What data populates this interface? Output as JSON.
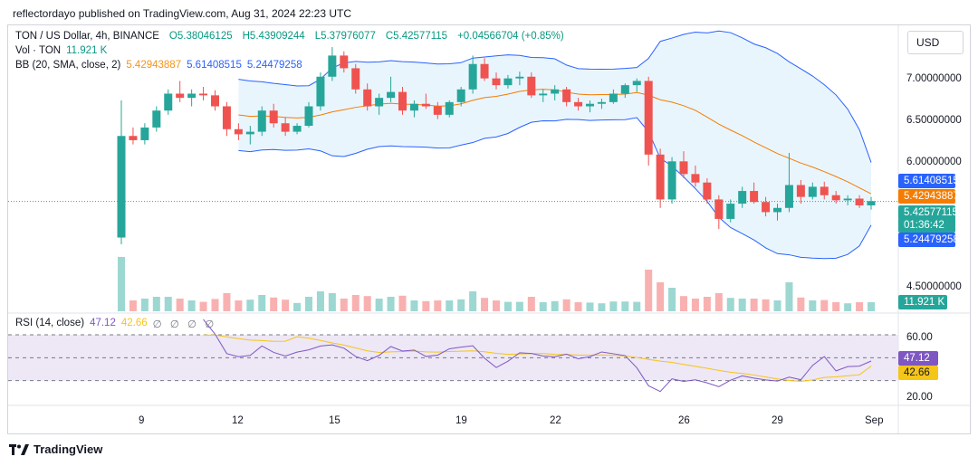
{
  "publisher_line": "reflectordayo published on TradingView.com, Aug 31, 2024 22:23 UTC",
  "legend": {
    "symbol": "TON / US Dollar, 4h, BINANCE",
    "open": "O5.38046125",
    "high": "H5.43909244",
    "low": "L5.37976077",
    "close": "C5.42577115",
    "change": "+0.04566704 (+0.85%)",
    "vol_label": "Vol · TON",
    "vol_value": "11.921 K",
    "bb_label": "BB (20, SMA, close, 2)",
    "bb_basis": "5.42943887",
    "bb_upper": "5.61408515",
    "bb_lower": "5.24479258"
  },
  "rsi_legend": {
    "label": "RSI (14, close)",
    "rsi": "47.12",
    "ma": "42.66",
    "extra": "∅ ∅ ∅ ∅"
  },
  "currency": "USD",
  "brand": "TradingView",
  "price_axis": {
    "ticks": [
      "7.00000000",
      "6.50000000",
      "6.00000000",
      "4.50000000"
    ],
    "badges": {
      "bb_upper": "5.61408515",
      "bb_basis": "5.42943887",
      "last_price": "5.42577115",
      "countdown": "01:36:42",
      "bb_lower": "5.24479258",
      "volume": "11.921 K"
    }
  },
  "rsi_axis": {
    "ticks": [
      "60.00",
      "20.00"
    ],
    "badges": {
      "rsi": "47.12",
      "ma": "42.66"
    }
  },
  "time_axis": {
    "ticks": [
      "9",
      "12",
      "15",
      "19",
      "22",
      "26",
      "29",
      "Sep"
    ]
  },
  "colors": {
    "up": "#26a69a",
    "down": "#ef5350",
    "bb_band": "#2962ff",
    "bb_basis": "#f57c00",
    "bb_fill": "#e3f2fd",
    "rsi_line": "#7e57c2",
    "rsi_ma": "#f5c518",
    "rsi_band": "#ede7f6"
  },
  "chart_data": {
    "type": "candlestick",
    "interval": "4h",
    "price_range": [
      4.3,
      7.4
    ],
    "rsi_range": [
      10,
      85
    ],
    "rsi_levels": [
      70,
      50,
      30
    ],
    "last": {
      "price": 5.42577115,
      "bb_upper": 5.61408515,
      "bb_basis": 5.42943887,
      "bb_lower": 5.24479258,
      "rsi": 47.12,
      "rsi_ma": 42.66,
      "volume": "11.921 K"
    },
    "ohlc_approx": [
      [
        5.0,
        6.62,
        4.92,
        6.2
      ],
      [
        6.2,
        6.3,
        6.1,
        6.15
      ],
      [
        6.15,
        6.35,
        6.1,
        6.3
      ],
      [
        6.3,
        6.55,
        6.25,
        6.5
      ],
      [
        6.5,
        6.75,
        6.45,
        6.7
      ],
      [
        6.7,
        6.85,
        6.6,
        6.65
      ],
      [
        6.65,
        6.75,
        6.55,
        6.7
      ],
      [
        6.7,
        6.78,
        6.62,
        6.68
      ],
      [
        6.68,
        6.74,
        6.5,
        6.55
      ],
      [
        6.55,
        6.6,
        6.2,
        6.28
      ],
      [
        6.28,
        6.35,
        6.15,
        6.22
      ],
      [
        6.22,
        6.32,
        6.1,
        6.25
      ],
      [
        6.25,
        6.55,
        6.2,
        6.5
      ],
      [
        6.5,
        6.58,
        6.3,
        6.35
      ],
      [
        6.35,
        6.42,
        6.2,
        6.25
      ],
      [
        6.25,
        6.35,
        6.22,
        6.32
      ],
      [
        6.32,
        6.6,
        6.3,
        6.55
      ],
      [
        6.55,
        6.95,
        6.5,
        6.9
      ],
      [
        6.9,
        7.25,
        6.85,
        7.15
      ],
      [
        7.15,
        7.2,
        6.95,
        7.0
      ],
      [
        7.0,
        7.05,
        6.7,
        6.75
      ],
      [
        6.75,
        6.82,
        6.5,
        6.55
      ],
      [
        6.55,
        6.7,
        6.45,
        6.65
      ],
      [
        6.65,
        6.9,
        6.6,
        6.72
      ],
      [
        6.72,
        6.78,
        6.45,
        6.5
      ],
      [
        6.5,
        6.62,
        6.42,
        6.58
      ],
      [
        6.58,
        6.7,
        6.52,
        6.55
      ],
      [
        6.55,
        6.6,
        6.4,
        6.45
      ],
      [
        6.45,
        6.62,
        6.42,
        6.6
      ],
      [
        6.6,
        6.78,
        6.55,
        6.75
      ],
      [
        6.75,
        7.15,
        6.7,
        7.05
      ],
      [
        7.05,
        7.12,
        6.85,
        6.88
      ],
      [
        6.88,
        6.95,
        6.75,
        6.8
      ],
      [
        6.8,
        6.92,
        6.76,
        6.88
      ],
      [
        6.88,
        6.96,
        6.8,
        6.9
      ],
      [
        6.9,
        6.95,
        6.65,
        6.68
      ],
      [
        6.68,
        6.75,
        6.6,
        6.7
      ],
      [
        6.7,
        6.8,
        6.62,
        6.75
      ],
      [
        6.75,
        6.78,
        6.55,
        6.6
      ],
      [
        6.6,
        6.65,
        6.5,
        6.55
      ],
      [
        6.55,
        6.62,
        6.48,
        6.58
      ],
      [
        6.58,
        6.64,
        6.52,
        6.6
      ],
      [
        6.6,
        6.75,
        6.58,
        6.7
      ],
      [
        6.7,
        6.82,
        6.65,
        6.8
      ],
      [
        6.8,
        6.88,
        6.72,
        6.85
      ],
      [
        6.85,
        6.9,
        5.85,
        5.98
      ],
      [
        5.98,
        6.05,
        5.35,
        5.45
      ],
      [
        5.45,
        5.95,
        5.4,
        5.9
      ],
      [
        5.9,
        6.02,
        5.7,
        5.75
      ],
      [
        5.75,
        5.85,
        5.6,
        5.65
      ],
      [
        5.65,
        5.7,
        5.4,
        5.45
      ],
      [
        5.45,
        5.5,
        5.1,
        5.22
      ],
      [
        5.22,
        5.45,
        5.18,
        5.4
      ],
      [
        5.4,
        5.6,
        5.35,
        5.55
      ],
      [
        5.55,
        5.65,
        5.4,
        5.42
      ],
      [
        5.42,
        5.48,
        5.25,
        5.3
      ],
      [
        5.3,
        5.4,
        5.2,
        5.35
      ],
      [
        5.35,
        6.0,
        5.3,
        5.62
      ],
      [
        5.62,
        5.68,
        5.4,
        5.48
      ],
      [
        5.48,
        5.65,
        5.45,
        5.6
      ],
      [
        5.6,
        5.66,
        5.45,
        5.5
      ],
      [
        5.5,
        5.55,
        5.4,
        5.44
      ],
      [
        5.44,
        5.5,
        5.38,
        5.46
      ],
      [
        5.46,
        5.5,
        5.35,
        5.38
      ],
      [
        5.38,
        5.48,
        5.33,
        5.43
      ]
    ]
  }
}
